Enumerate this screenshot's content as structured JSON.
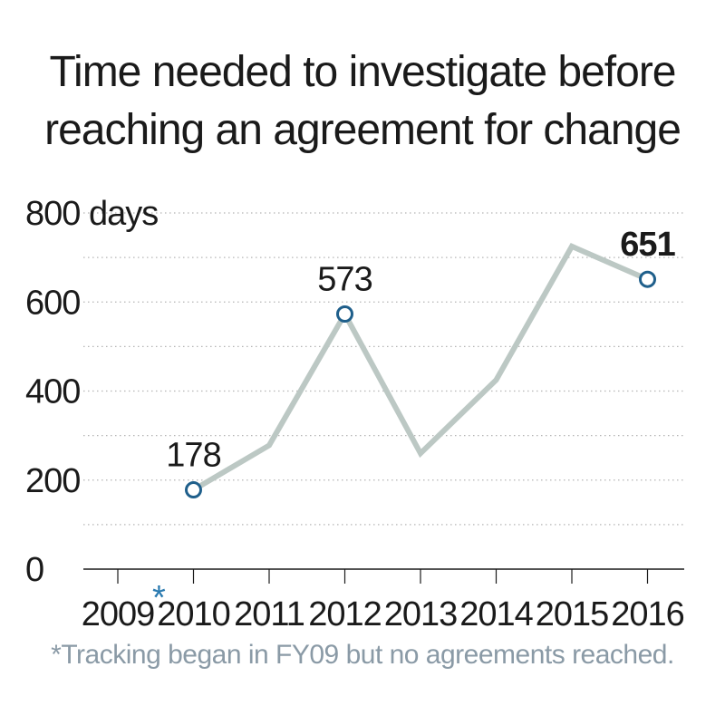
{
  "title_line1": "Time needed to investigate before",
  "title_line2": "reaching an agreement for change",
  "footnote": "*Tracking began in FY09 but no agreements reached.",
  "colors": {
    "line": "#bcc8c4",
    "marker": "#1f5f8b",
    "grid": "#b5b5b5",
    "text": "#1a1a1a",
    "asterisk": "#2a7ab0"
  },
  "chart_data": {
    "type": "line",
    "title": "Time needed to investigate before reaching an agreement for change",
    "ylabel": "",
    "ylim": [
      0,
      800
    ],
    "yticks": [
      "0",
      "200",
      "400",
      "600",
      "800 days"
    ],
    "yticks_values": [
      0,
      200,
      400,
      600,
      800
    ],
    "categories": [
      "2009",
      "2010",
      "2011",
      "2012",
      "2013",
      "2014",
      "2015",
      "2016"
    ],
    "category_asterisk": {
      "2009": "*"
    },
    "series": [
      {
        "x": [
          "2010",
          "2011",
          "2012",
          "2013",
          "2014",
          "2015",
          "2016"
        ],
        "values": [
          178,
          278,
          573,
          260,
          425,
          725,
          651
        ]
      }
    ],
    "labeled_points": [
      {
        "x": "2010",
        "value": 178,
        "label": "178",
        "bold": false
      },
      {
        "x": "2012",
        "value": 573,
        "label": "573",
        "bold": false
      },
      {
        "x": "2016",
        "value": 651,
        "label": "651",
        "bold": true
      }
    ],
    "grid": true
  }
}
